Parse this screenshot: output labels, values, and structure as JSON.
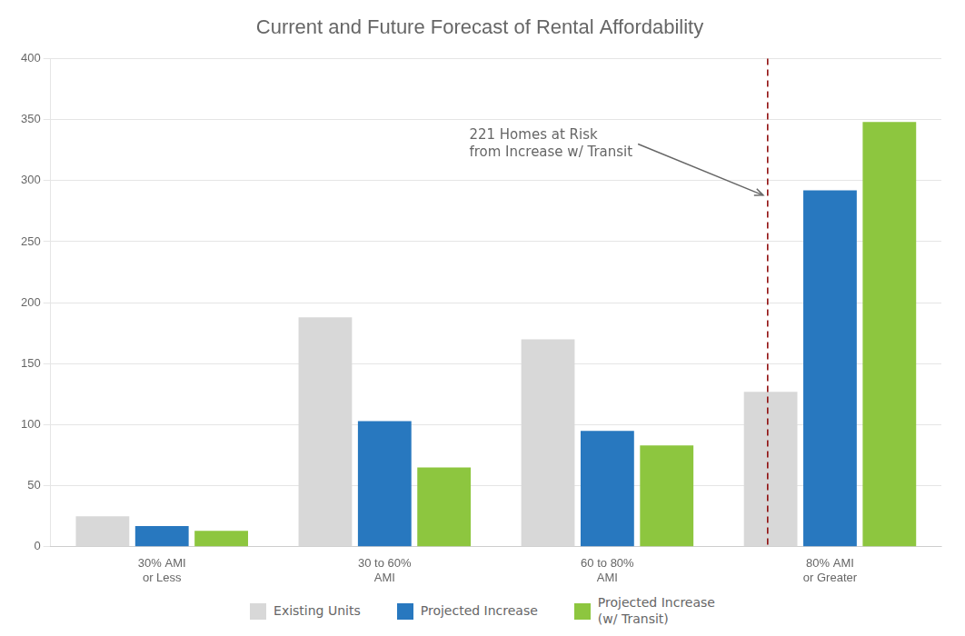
{
  "chart_data": {
    "type": "bar",
    "title": "Current and Future Forecast of Rental Affordability",
    "categories": [
      "30% AMI\nor Less",
      "30 to 60%\nAMI",
      "60 to 80%\nAMI",
      "80% AMI\nor Greater"
    ],
    "series": [
      {
        "name": "Existing Units",
        "color": "#d8d8d8",
        "values": [
          25,
          188,
          170,
          127
        ]
      },
      {
        "name": "Projected Increase",
        "color": "#2878bf",
        "values": [
          17,
          103,
          95,
          292
        ]
      },
      {
        "name": "Projected Increase\n(w/ Transit)",
        "color": "#8dc63f",
        "values": [
          13,
          65,
          83,
          348
        ]
      }
    ],
    "ylim": [
      0,
      400
    ],
    "yticks": [
      0,
      50,
      100,
      150,
      200,
      250,
      300,
      350,
      400
    ],
    "grid": true,
    "legend": "bottom",
    "annotations": [
      {
        "text": "221 Homes at Risk\nfrom Increase w/ Transit",
        "color": "#8b0000",
        "line_style": "dashed"
      }
    ]
  }
}
